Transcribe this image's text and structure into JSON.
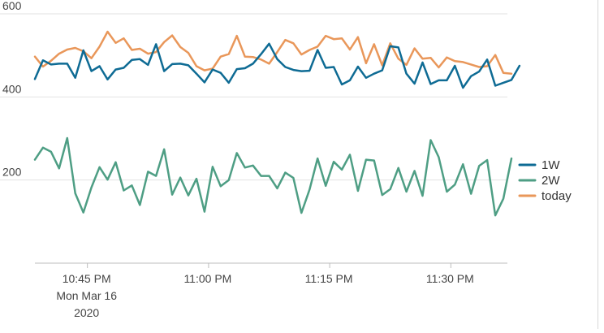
{
  "chart_data": {
    "type": "line",
    "title": "",
    "xlabel": "",
    "ylabel": "",
    "ylim": [
      0,
      600
    ],
    "y_ticks": [
      200,
      400,
      600
    ],
    "y_tick_labels": [
      "200",
      "400",
      "600"
    ],
    "x_range_minutes": [
      0,
      58.5
    ],
    "x_ticks": [
      {
        "minute": 6.5,
        "lines": [
          "10:45 PM",
          "Mon Mar 16",
          "2020"
        ]
      },
      {
        "minute": 21.5,
        "lines": [
          "11:00 PM"
        ]
      },
      {
        "minute": 36.5,
        "lines": [
          "11:15 PM"
        ]
      },
      {
        "minute": 51.5,
        "lines": [
          "11:30 PM"
        ]
      }
    ],
    "grid": true,
    "legend_position": "right",
    "series": [
      {
        "name": "1W",
        "color": "#0e6b94",
        "values": [
          443,
          488,
          478,
          480,
          480,
          446,
          512,
          462,
          474,
          442,
          466,
          470,
          489,
          491,
          477,
          527,
          462,
          479,
          480,
          476,
          456,
          435,
          466,
          458,
          434,
          467,
          469,
          480,
          503,
          528,
          491,
          472,
          465,
          462,
          463,
          513,
          470,
          472,
          430,
          440,
          473,
          446,
          456,
          464,
          522,
          519,
          456,
          432,
          483,
          431,
          440,
          440,
          475,
          422,
          450,
          461,
          490,
          427,
          434,
          441,
          475
        ]
      },
      {
        "name": "2W",
        "color": "#4e9e84",
        "values": [
          249,
          278,
          268,
          228,
          301,
          168,
          122,
          182,
          231,
          201,
          243,
          175,
          187,
          140,
          220,
          210,
          274,
          165,
          206,
          163,
          203,
          124,
          232,
          185,
          200,
          265,
          230,
          235,
          210,
          210,
          180,
          218,
          205,
          121,
          177,
          252,
          186,
          244,
          225,
          261,
          174,
          249,
          247,
          164,
          178,
          229,
          172,
          222,
          162,
          296,
          255,
          172,
          189,
          238,
          167,
          234,
          248,
          115,
          155,
          252
        ]
      },
      {
        "name": "today",
        "color": "#e9975a",
        "values": [
          497,
          473,
          487,
          504,
          514,
          518,
          510,
          493,
          521,
          557,
          530,
          541,
          513,
          516,
          504,
          508,
          532,
          548,
          520,
          506,
          474,
          464,
          468,
          497,
          503,
          547,
          497,
          496,
          490,
          480,
          508,
          537,
          529,
          502,
          513,
          521,
          547,
          539,
          541,
          514,
          544,
          481,
          527,
          476,
          529,
          492,
          477,
          517,
          492,
          494,
          471,
          495,
          486,
          484,
          478,
          472,
          474,
          501,
          458,
          456
        ]
      }
    ]
  }
}
